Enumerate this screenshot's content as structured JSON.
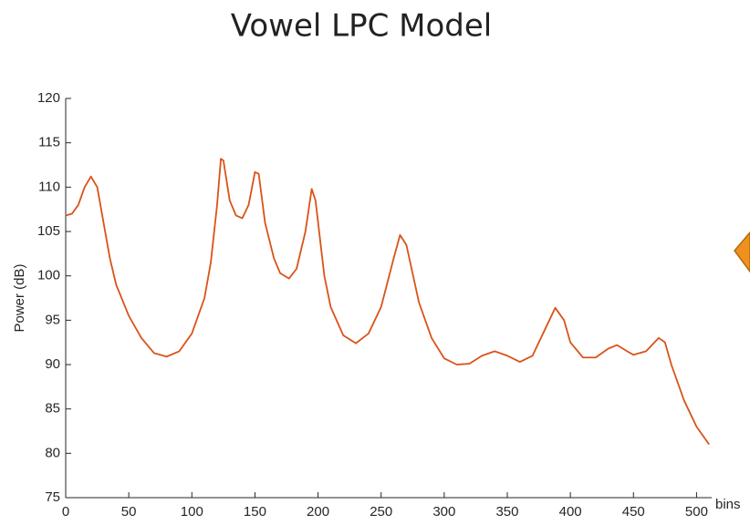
{
  "chart_data": {
    "type": "line",
    "title": "Vowel LPC Model",
    "ylabel": "Power (dB)",
    "xlabel": "bins",
    "x": [
      0,
      5,
      10,
      15,
      20,
      25,
      30,
      35,
      40,
      50,
      60,
      70,
      80,
      90,
      100,
      110,
      115,
      120,
      123,
      125,
      130,
      135,
      140,
      145,
      150,
      153,
      158,
      165,
      170,
      177,
      183,
      190,
      195,
      198,
      205,
      210,
      220,
      230,
      240,
      250,
      260,
      265,
      270,
      280,
      290,
      300,
      310,
      320,
      330,
      340,
      350,
      360,
      370,
      380,
      388,
      395,
      400,
      410,
      420,
      430,
      437,
      445,
      450,
      460,
      470,
      475,
      480,
      490,
      500,
      510
    ],
    "values": [
      106.8,
      107,
      108,
      110,
      111.2,
      110,
      106,
      102,
      99,
      95.5,
      93,
      91.3,
      90.9,
      91.5,
      93.5,
      97.5,
      101.5,
      108,
      113.2,
      113,
      108.5,
      106.8,
      106.5,
      108,
      111.7,
      111.5,
      106,
      102,
      100.3,
      99.7,
      100.8,
      105,
      109.8,
      108.5,
      100,
      96.5,
      93.3,
      92.4,
      93.5,
      96.5,
      102,
      104.6,
      103.5,
      97,
      93,
      90.7,
      90,
      90.1,
      91,
      91.5,
      91,
      90.3,
      91,
      94,
      96.4,
      95,
      92.5,
      90.8,
      90.8,
      91.8,
      92.2,
      91.5,
      91.1,
      91.5,
      93,
      92.5,
      90,
      86,
      83,
      81
    ],
    "color": "#d95319",
    "xlim": [
      0,
      512
    ],
    "xticks": [
      0,
      50,
      100,
      150,
      200,
      250,
      300,
      350,
      400,
      450,
      500
    ],
    "ylim": [
      75,
      120
    ],
    "yticks": [
      75,
      80,
      85,
      90,
      95,
      100,
      105,
      110,
      115,
      120
    ]
  }
}
